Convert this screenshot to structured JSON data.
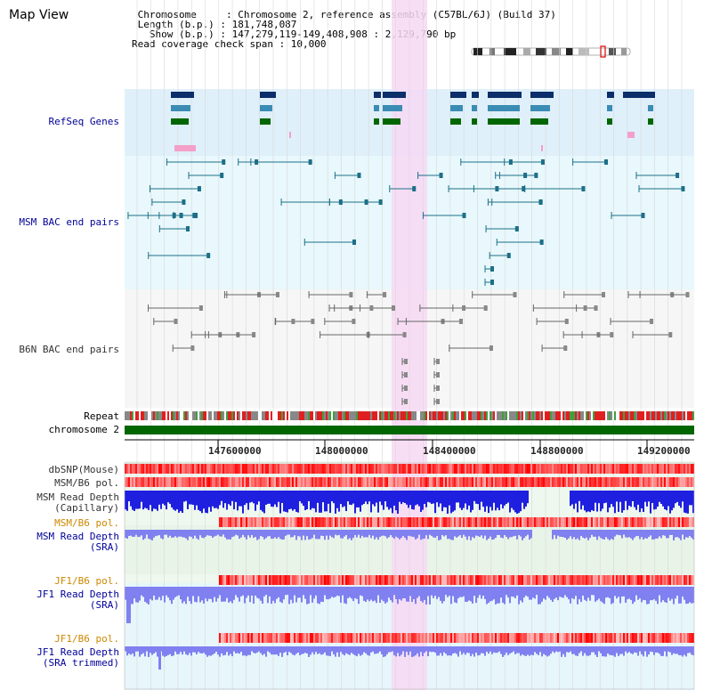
{
  "header": {
    "title": "Map View",
    "info_lines": [
      " Chromosome     : Chromosome 2, reference assembly (C57BL/6J) (Build 37)",
      " Length (b.p.) : 181,748,087",
      "   Show (b.p.) : 147,279,119-149,408,908 : 2,129,790 bp",
      "Read coverage check span : 10,000"
    ]
  },
  "tracks": {
    "refseq": "RefSeq Genes",
    "msm_bac": "MSM BAC end pairs",
    "b6n_bac": "B6N BAC end pairs",
    "repeat": "Repeat",
    "chromosome": "chromosome 2",
    "dbsnp": "dbSNP(Mouse)",
    "msm_b6_pol_1": "MSM/B6 pol.",
    "msm_depth_cap_1": "MSM Read Depth",
    "msm_depth_cap_2": "(Capillary)",
    "msm_b6_pol_2": "MSM/B6 pol.",
    "msm_depth_sra_1": "MSM Read Depth",
    "msm_depth_sra_2": "(SRA)",
    "jf1_b6_pol_1": "JF1/B6 pol.",
    "jf1_depth_sra_1": "JF1 Read Depth",
    "jf1_depth_sra_2": "(SRA)",
    "jf1_b6_pol_2": "JF1/B6 pol.",
    "jf1_depth_trim_1": "JF1 Read Depth",
    "jf1_depth_trim_2": "(SRA trimmed)"
  },
  "axis": {
    "ticks": [
      "147600000",
      "148000000",
      "148400000",
      "148800000",
      "149200000"
    ]
  },
  "colors": {
    "refseq_bg": "#dff0fa",
    "bac_bg": "#e8f8fc",
    "b6n_bg": "#f6f6f6",
    "highlight": "#f7d8f3",
    "chromosome": "#006600",
    "gene_dark": "#0c2e6a",
    "gene_mid": "#3b8cb4",
    "gene_green": "#006600",
    "gene_pink": "#f4a0c8",
    "msm_pair": "#1d6f88",
    "b6n_pair": "#666666",
    "depth_cap": "#1f1fe0",
    "depth_sra": "#8080f0",
    "pol": "#e83030"
  }
}
